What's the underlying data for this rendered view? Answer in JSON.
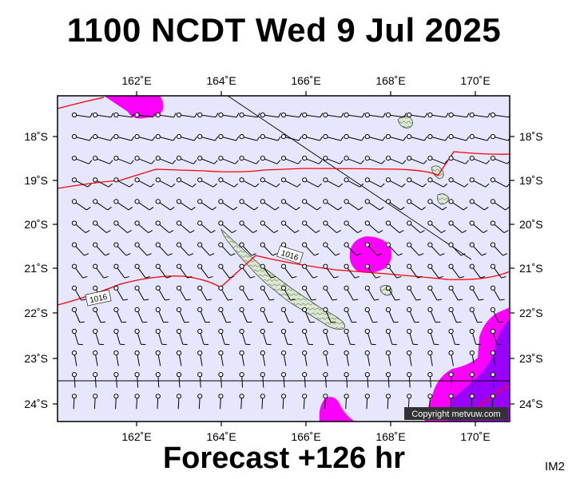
{
  "header": {
    "title": "1100 NCDT Wed 9 Jul 2025"
  },
  "footer": {
    "forecast": "Forecast +126 hr",
    "image_code": "IM2"
  },
  "map": {
    "projection": "Mercator",
    "lon_range": [
      160.0,
      171.0
    ],
    "lat_range": [
      -24.4,
      -17.2
    ],
    "lon_ticks": [
      "162˚E",
      "164˚E",
      "166˚E",
      "168˚E",
      "170˚E"
    ],
    "lat_ticks": [
      "18˚S",
      "19˚S",
      "20˚S",
      "21˚S",
      "22˚S",
      "23˚S",
      "24˚S"
    ],
    "copyright": "Copyright metvuw.com",
    "isobar_labels": [
      "1016",
      "1016"
    ],
    "colors": {
      "sea": "#e6e6ff",
      "isobar": "#ff0000",
      "rain_light": "#ff00ff",
      "rain_heavy": "#8800ff",
      "land": "#c8dcc0",
      "wind_barb": "#000000"
    },
    "wind": "westerly to south-westerly barbs, mostly 5-15 knots; calm circles in southwest"
  }
}
